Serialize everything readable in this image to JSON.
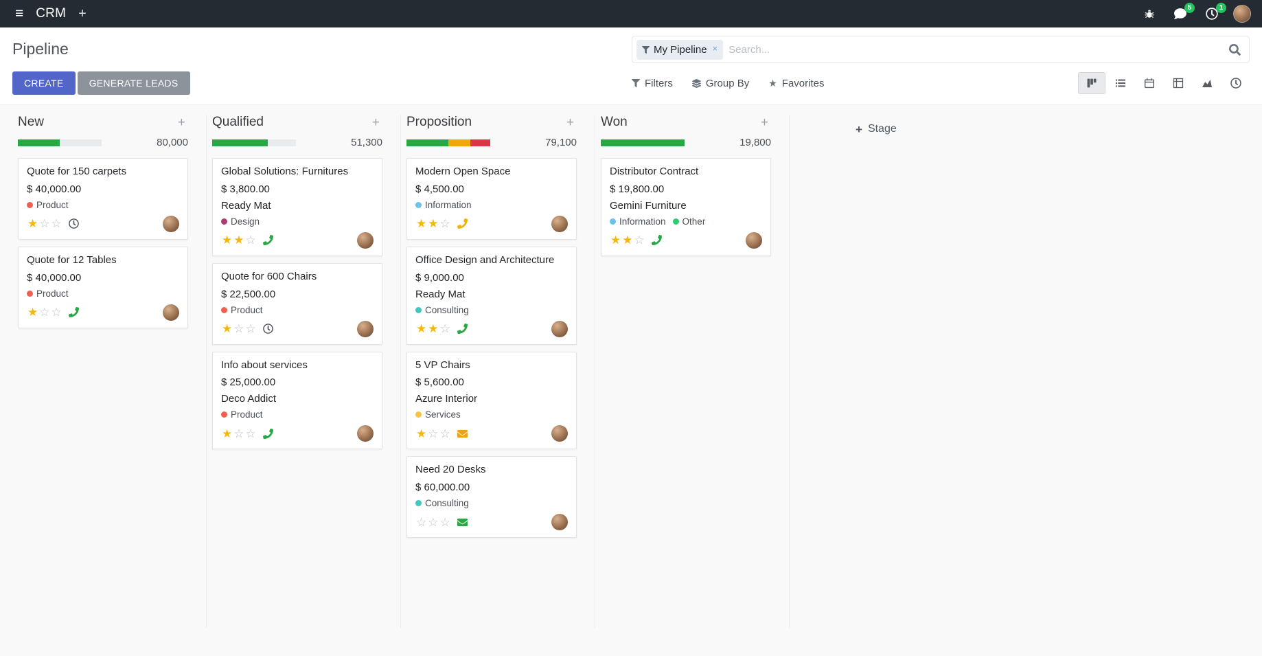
{
  "topbar": {
    "app_menu_label": "CRM",
    "messages_badge": "5",
    "activities_badge": "1"
  },
  "control_panel": {
    "title": "Pipeline",
    "buttons": {
      "create": "CREATE",
      "generate_leads": "GENERATE LEADS"
    },
    "menus": {
      "filters": "Filters",
      "group_by": "Group By",
      "favorites": "Favorites"
    },
    "search": {
      "facet_label": "My Pipeline",
      "placeholder": "Search...",
      "remove_symbol": "×"
    },
    "view_switcher": [
      "kanban",
      "list",
      "calendar",
      "pivot",
      "graph",
      "activity"
    ]
  },
  "icons": {
    "apps_menu": "≡",
    "plus": "+",
    "column_add": "+",
    "star_filled": "★",
    "star_empty": "☆"
  },
  "kanban": {
    "add_column_label": "Stage",
    "columns": [
      {
        "name": "New",
        "total": "80,000",
        "progress": [
          {
            "color": "#28a745",
            "pct": 50
          }
        ],
        "cards": [
          {
            "title": "Quote for 150 carpets",
            "amount": "$ 40,000.00",
            "partner": null,
            "tags": [
              {
                "label": "Product",
                "color": "#f06050"
              }
            ],
            "stars": 1,
            "activity": {
              "type": "clock",
              "color": "#495057"
            }
          },
          {
            "title": "Quote for 12 Tables",
            "amount": "$ 40,000.00",
            "partner": null,
            "tags": [
              {
                "label": "Product",
                "color": "#f06050"
              }
            ],
            "stars": 1,
            "activity": {
              "type": "phone",
              "color": "#28a745"
            }
          }
        ]
      },
      {
        "name": "Qualified",
        "total": "51,300",
        "progress": [
          {
            "color": "#28a745",
            "pct": 66
          }
        ],
        "cards": [
          {
            "title": "Global Solutions: Furnitures",
            "amount": "$ 3,800.00",
            "partner": "Ready Mat",
            "tags": [
              {
                "label": "Design",
                "color": "#a83a78"
              }
            ],
            "stars": 2,
            "activity": {
              "type": "phone",
              "color": "#28a745"
            }
          },
          {
            "title": "Quote for 600 Chairs",
            "amount": "$ 22,500.00",
            "partner": null,
            "tags": [
              {
                "label": "Product",
                "color": "#f06050"
              }
            ],
            "stars": 1,
            "activity": {
              "type": "clock",
              "color": "#495057"
            }
          },
          {
            "title": "Info about services",
            "amount": "$ 25,000.00",
            "partner": "Deco Addict",
            "tags": [
              {
                "label": "Product",
                "color": "#f06050"
              }
            ],
            "stars": 1,
            "activity": {
              "type": "phone",
              "color": "#28a745"
            }
          }
        ]
      },
      {
        "name": "Proposition",
        "total": "79,100",
        "progress": [
          {
            "color": "#28a745",
            "pct": 50
          },
          {
            "color": "#f1a60a",
            "pct": 26
          },
          {
            "color": "#dc3545",
            "pct": 24
          }
        ],
        "cards": [
          {
            "title": "Modern Open Space",
            "amount": "$ 4,500.00",
            "partner": null,
            "tags": [
              {
                "label": "Information",
                "color": "#6cc1ed"
              }
            ],
            "stars": 2,
            "activity": {
              "type": "phone",
              "color": "#efb30b"
            }
          },
          {
            "title": "Office Design and Architecture",
            "amount": "$ 9,000.00",
            "partner": "Ready Mat",
            "tags": [
              {
                "label": "Consulting",
                "color": "#3bc8bd"
              }
            ],
            "stars": 2,
            "activity": {
              "type": "phone",
              "color": "#28a745"
            }
          },
          {
            "title": "5 VP Chairs",
            "amount": "$ 5,600.00",
            "partner": "Azure Interior",
            "tags": [
              {
                "label": "Services",
                "color": "#f6c342"
              }
            ],
            "stars": 1,
            "activity": {
              "type": "mail",
              "color": "#efa30b"
            }
          },
          {
            "title": "Need 20 Desks",
            "amount": "$ 60,000.00",
            "partner": null,
            "tags": [
              {
                "label": "Consulting",
                "color": "#3bc8bd"
              }
            ],
            "stars": 0,
            "activity": {
              "type": "mail",
              "color": "#28a745"
            }
          }
        ]
      },
      {
        "name": "Won",
        "total": "19,800",
        "progress": [
          {
            "color": "#28a745",
            "pct": 100
          }
        ],
        "cards": [
          {
            "title": "Distributor Contract",
            "amount": "$ 19,800.00",
            "partner": "Gemini Furniture",
            "tags": [
              {
                "label": "Information",
                "color": "#6cc1ed"
              },
              {
                "label": "Other",
                "color": "#2ecc71"
              }
            ],
            "stars": 2,
            "activity": {
              "type": "phone",
              "color": "#28a745"
            }
          }
        ]
      }
    ]
  },
  "colors": {
    "topbar_bg": "#252b33",
    "primary_button": "#5266c9",
    "secondary_button": "#8c939b",
    "badge": "#21c45d",
    "star_filled": "#f5b70a",
    "progress_green": "#28a745",
    "progress_orange": "#f1a60a",
    "progress_red": "#dc3545"
  }
}
